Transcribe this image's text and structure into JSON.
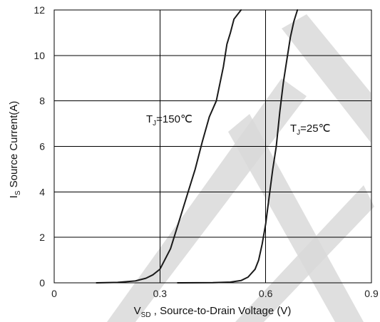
{
  "chart_data": {
    "type": "line",
    "title": "",
    "xlabel": {
      "prefix": "V",
      "sub": "SD",
      "suffix": " , Source-to-Drain  Voltage (V)"
    },
    "ylabel": {
      "prefix": "I",
      "sub": "S",
      "suffix": " Source Current(A)"
    },
    "xlim": [
      0,
      0.9
    ],
    "ylim": [
      0,
      12
    ],
    "x_ticks": [
      {
        "value": 0,
        "label": "0"
      },
      {
        "value": 0.3,
        "label": "0.3"
      },
      {
        "value": 0.6,
        "label": "0.6"
      },
      {
        "value": 0.9,
        "label": "0.9"
      }
    ],
    "y_ticks": [
      {
        "value": 0,
        "label": "0"
      },
      {
        "value": 2,
        "label": "2"
      },
      {
        "value": 4,
        "label": "4"
      },
      {
        "value": 6,
        "label": "6"
      },
      {
        "value": 8,
        "label": "8"
      },
      {
        "value": 10,
        "label": "10"
      },
      {
        "value": 12,
        "label": "12"
      }
    ],
    "grid": true,
    "series": [
      {
        "name": "T_J=150℃",
        "x": [
          0.12,
          0.18,
          0.23,
          0.26,
          0.28,
          0.3,
          0.31,
          0.33,
          0.35,
          0.38,
          0.4,
          0.42,
          0.44,
          0.46,
          0.48,
          0.49,
          0.5,
          0.51,
          0.53
        ],
        "y": [
          0.0,
          0.02,
          0.08,
          0.2,
          0.35,
          0.6,
          0.9,
          1.5,
          2.5,
          4.0,
          5.0,
          6.2,
          7.3,
          8.0,
          9.5,
          10.5,
          11.0,
          11.6,
          12.0
        ]
      },
      {
        "name": "T_J=25℃",
        "x": [
          0.35,
          0.45,
          0.5,
          0.53,
          0.55,
          0.57,
          0.58,
          0.59,
          0.6,
          0.61,
          0.62,
          0.63,
          0.64,
          0.65,
          0.66,
          0.67,
          0.68,
          0.69
        ],
        "y": [
          0.0,
          0.01,
          0.03,
          0.1,
          0.25,
          0.6,
          1.0,
          1.7,
          2.6,
          3.8,
          5.0,
          6.0,
          7.5,
          8.8,
          9.8,
          10.8,
          11.5,
          12.0
        ]
      }
    ],
    "annotations": [
      {
        "prefix": "T",
        "sub": "J",
        "suffix": "=150℃",
        "anchor": "left-of-curves"
      },
      {
        "prefix": "T",
        "sub": "J",
        "suffix": "=25℃",
        "anchor": "right-of-curves"
      }
    ],
    "colors": {
      "line": "#1a1a1a",
      "grid": "#000000",
      "watermark": "#d9d9d9"
    }
  }
}
